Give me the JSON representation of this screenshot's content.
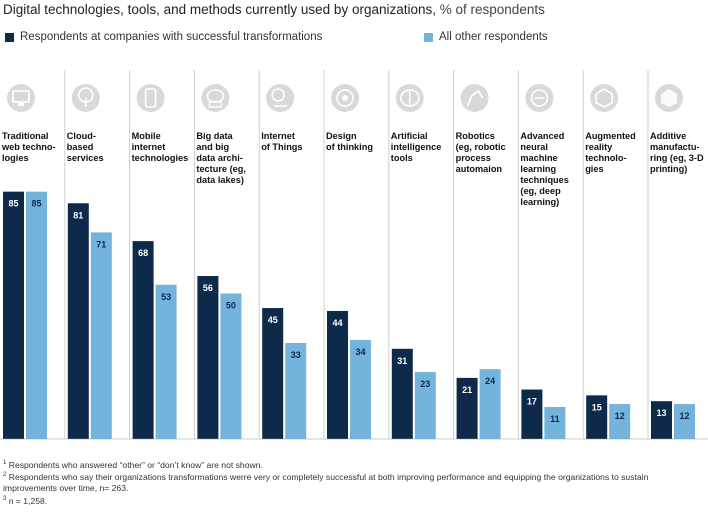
{
  "title": "Digital technologies, tools, and methods currently used by organizations,",
  "title_unit": "% of respondents",
  "legend": [
    {
      "label": "Respondents at companies with successful transformations",
      "color": "#0d2a4a"
    },
    {
      "label": "All other respondents",
      "color": "#74b4dc"
    }
  ],
  "colors": {
    "successful": "#0d2a4a",
    "other": "#74b4dc",
    "icon_bg": "#d9d9d9",
    "icon_fg": "#ffffff",
    "divider": "#d0d0d0"
  },
  "icons": [
    "monitor-icon",
    "cloud-tree-icon",
    "mobile-phone-icon",
    "database-cloud-icon",
    "lightbulb-lamp-icon",
    "gear-head-icon",
    "brain-icon",
    "robot-arm-icon",
    "neural-head-icon",
    "ar-cube-icon",
    "3d-cube-icon"
  ],
  "chart_data": {
    "type": "bar",
    "categories": [
      "Traditional\nweb techno-\nlogies",
      "Cloud-\nbased\nservices",
      "Mobile\ninternet\ntechnologies",
      "Big data\nand big\ndata archi-\ntecture (eg,\ndata lakes)",
      "Internet\nof Things",
      "Design\nof thinking",
      "Artificial\nintelligence\ntools",
      "Robotics\n(eg, robotic\nprocess\nautomaion",
      "Advanced\nneural\nmachine\nlearning\ntechniques\n(eg, deep\nlearning)",
      "Augmented\nreality\ntechnolo-\ngies",
      "Additive\nmanufactu-\nring (eg, 3-D\nprinting)"
    ],
    "series": [
      {
        "name": "Respondents at companies with successful transformations",
        "values": [
          85,
          81,
          68,
          56,
          45,
          44,
          31,
          21,
          17,
          15,
          13
        ]
      },
      {
        "name": "All other respondents",
        "values": [
          85,
          71,
          53,
          50,
          33,
          34,
          23,
          24,
          11,
          12,
          12
        ]
      }
    ],
    "ylim": [
      0,
      100
    ],
    "grid": false,
    "legend_position": "top"
  },
  "footnotes": [
    {
      "mark": "1",
      "text": "Respondents who answered “other” or “don’t know” are not shown."
    },
    {
      "mark": "2",
      "text": "Respondents who say their organizations transformations werre very or completely successful at both improving performance and equipping the organizations to sustain improvements over time, n= 263."
    },
    {
      "mark": "3",
      "text": "n = 1,258."
    }
  ]
}
